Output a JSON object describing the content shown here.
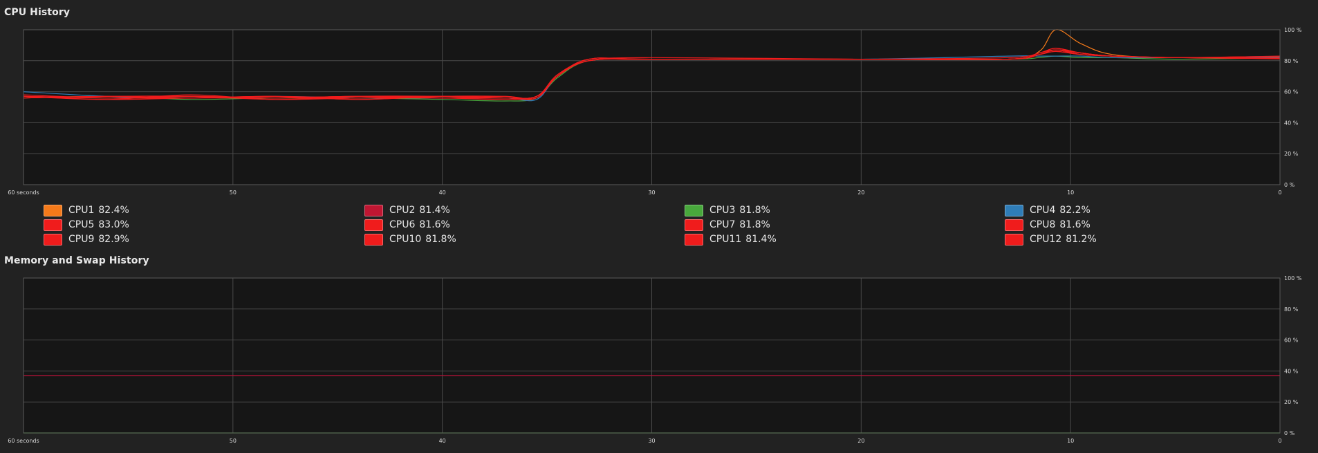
{
  "cpu_section": {
    "title": "CPU History"
  },
  "memory_section": {
    "title": "Memory and Swap History"
  },
  "colors": {
    "background": "#222222",
    "plot_background": "#161616",
    "grid": "#4a4a4a",
    "memory_line": "#c0103a",
    "swap_line": "#4eb030"
  },
  "legend": [
    {
      "label": "CPU1",
      "value": "82.4%",
      "color": "#f57a1a"
    },
    {
      "label": "CPU2",
      "value": "81.4%",
      "color": "#c01632"
    },
    {
      "label": "CPU3",
      "value": "81.8%",
      "color": "#48a83c"
    },
    {
      "label": "CPU4",
      "value": "82.2%",
      "color": "#2f7db8"
    },
    {
      "label": "CPU5",
      "value": "83.0%",
      "color": "#f01c1c"
    },
    {
      "label": "CPU6",
      "value": "81.6%",
      "color": "#f01c1c"
    },
    {
      "label": "CPU7",
      "value": "81.8%",
      "color": "#f01c1c"
    },
    {
      "label": "CPU8",
      "value": "81.6%",
      "color": "#f01c1c"
    },
    {
      "label": "CPU9",
      "value": "82.9%",
      "color": "#f01c1c"
    },
    {
      "label": "CPU10",
      "value": "81.8%",
      "color": "#f01c1c"
    },
    {
      "label": "CPU11",
      "value": "81.4%",
      "color": "#f01c1c"
    },
    {
      "label": "CPU12",
      "value": "81.2%",
      "color": "#f01c1c"
    }
  ],
  "chart_data": [
    {
      "type": "line",
      "title": "CPU History",
      "x_ticks": [
        "60 seconds",
        "50",
        "40",
        "30",
        "20",
        "10",
        "0"
      ],
      "y_ticks": [
        "0 %",
        "20 %",
        "40 %",
        "60 %",
        "80 %",
        "100 %"
      ],
      "xlim": [
        60,
        0
      ],
      "ylim": [
        0,
        100
      ],
      "grid": true,
      "x": [
        60,
        56,
        52,
        48,
        44,
        40,
        37,
        35.5,
        34.5,
        33,
        30,
        20,
        13,
        11.5,
        10.7,
        9.5,
        8,
        5,
        0
      ],
      "series": [
        {
          "name": "CPU1",
          "values": [
            57,
            56,
            57,
            56,
            56,
            57,
            56,
            57,
            70,
            80,
            81,
            81,
            81,
            86,
            100,
            91,
            84,
            82,
            82.4
          ]
        },
        {
          "name": "CPU2",
          "values": [
            57,
            56,
            57,
            56,
            57,
            56,
            56,
            57,
            70,
            80,
            81,
            81,
            81,
            84,
            87,
            85,
            83,
            82,
            81.4
          ]
        },
        {
          "name": "CPU3",
          "values": [
            56,
            57,
            55,
            56,
            56,
            55,
            54,
            56,
            69,
            80,
            81,
            81,
            81,
            82,
            83,
            82,
            82,
            81,
            81.8
          ]
        },
        {
          "name": "CPU4",
          "values": [
            60,
            57,
            56,
            57,
            56,
            56,
            56,
            55,
            70,
            80,
            81,
            81,
            83,
            83,
            83,
            83,
            82,
            82,
            82.2
          ]
        },
        {
          "name": "CPU5",
          "values": [
            57,
            55,
            58,
            55,
            57,
            57,
            56,
            57,
            70,
            81,
            81,
            81,
            81,
            85,
            88,
            85,
            83,
            82,
            83.0
          ]
        },
        {
          "name": "CPU6",
          "values": [
            56,
            57,
            56,
            57,
            55,
            57,
            57,
            56,
            71,
            80,
            81,
            81,
            81,
            84,
            86,
            84,
            83,
            82,
            81.6
          ]
        },
        {
          "name": "CPU7",
          "values": [
            58,
            56,
            57,
            56,
            57,
            56,
            55,
            57,
            70,
            80,
            82,
            81,
            81,
            84,
            87,
            85,
            83,
            82,
            81.8
          ]
        },
        {
          "name": "CPU8",
          "values": [
            57,
            55,
            56,
            57,
            56,
            57,
            56,
            56,
            70,
            81,
            81,
            81,
            82,
            85,
            88,
            85,
            83,
            82,
            81.6
          ]
        },
        {
          "name": "CPU9",
          "values": [
            56,
            57,
            57,
            55,
            56,
            57,
            56,
            57,
            71,
            80,
            81,
            81,
            81,
            84,
            87,
            84,
            83,
            82,
            82.9
          ]
        },
        {
          "name": "CPU10",
          "values": [
            57,
            56,
            56,
            56,
            57,
            56,
            57,
            56,
            70,
            80,
            81,
            81,
            81,
            84,
            86,
            84,
            83,
            82,
            81.8
          ]
        },
        {
          "name": "CPU11",
          "values": [
            56,
            57,
            57,
            56,
            56,
            56,
            56,
            57,
            70,
            80,
            81,
            81,
            81,
            84,
            87,
            84,
            83,
            82,
            81.4
          ]
        },
        {
          "name": "CPU12",
          "values": [
            57,
            56,
            56,
            57,
            55,
            57,
            56,
            56,
            70,
            81,
            81,
            81,
            81,
            85,
            87,
            85,
            83,
            82,
            81.2
          ]
        }
      ]
    },
    {
      "type": "line",
      "title": "Memory and Swap History",
      "x_ticks": [
        "60 seconds",
        "50",
        "40",
        "30",
        "20",
        "10",
        "0"
      ],
      "y_ticks": [
        "0 %",
        "20 %",
        "40 %",
        "60 %",
        "80 %",
        "100 %"
      ],
      "xlim": [
        60,
        0
      ],
      "ylim": [
        0,
        100
      ],
      "grid": true,
      "x": [
        60,
        0
      ],
      "series": [
        {
          "values": [
            37,
            37
          ]
        },
        {
          "values": [
            0,
            0
          ]
        }
      ]
    }
  ]
}
